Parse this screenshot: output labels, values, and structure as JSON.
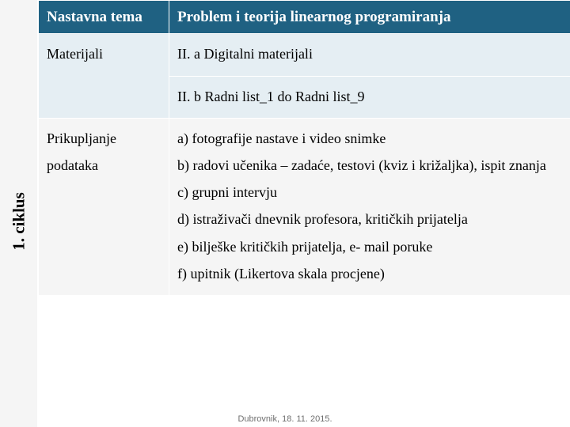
{
  "sidebar": {
    "label": "1. ciklus"
  },
  "table": {
    "header": {
      "left": "Nastavna tema",
      "right": "Problem i teorija linearnog programiranja"
    },
    "materials": {
      "left": "Materijali",
      "right1": "II. a Digitalni materijali",
      "right2": "II. b Radni list_1 do Radni list_9"
    },
    "collect": {
      "left": "Prikupljanje podataka",
      "right": "a) fotografije nastave i video snimke\nb) radovi učenika – zadaće, testovi (kviz i križaljka), ispit znanja\nc) grupni intervju\nd) istraživači dnevnik profesora, kritičkih prijatelja\ne) bilješke kritičkih prijatelja, e- mail poruke\nf) upitnik (Likertova skala procjene)"
    }
  },
  "footer": "Dubrovnik, 18. 11. 2015."
}
